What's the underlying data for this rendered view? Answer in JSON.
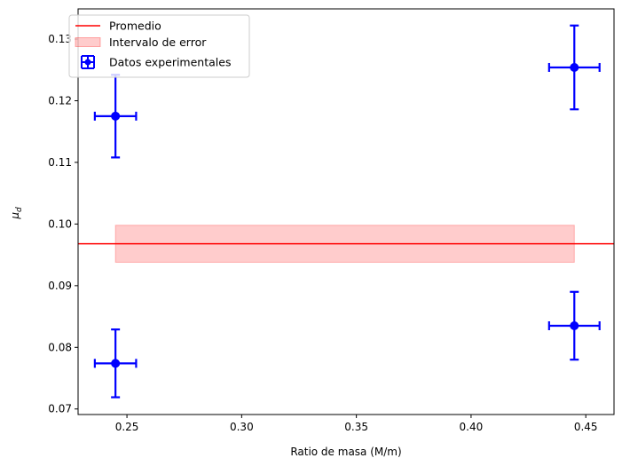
{
  "chart_data": {
    "type": "scatter",
    "xlabel": "Ratio de masa (M/m)",
    "ylabel": "μ",
    "ylabel_sub": "d",
    "xlim": [
      0.2287,
      0.4623
    ],
    "ylim": [
      0.0691,
      0.1349
    ],
    "xticks": [
      0.25,
      0.3,
      0.35,
      0.4,
      0.45
    ],
    "xtick_labels": [
      "0.25",
      "0.30",
      "0.35",
      "0.40",
      "0.45"
    ],
    "yticks": [
      0.07,
      0.08,
      0.09,
      0.1,
      0.11,
      0.12,
      0.13
    ],
    "ytick_labels": [
      "0.07",
      "0.08",
      "0.09",
      "0.10",
      "0.11",
      "0.12",
      "0.13"
    ],
    "grid": false,
    "legend_position": "top-left",
    "mean": {
      "name": "Promedio",
      "y": 0.0968,
      "color": "#ff0000"
    },
    "error_band": {
      "name": "Intervalo de error",
      "x": [
        0.245,
        0.445
      ],
      "y": [
        0.0938,
        0.0998
      ],
      "color": "#ff0000",
      "opacity": 0.2
    },
    "series": [
      {
        "name": "Datos experimentales",
        "color": "#0000ff",
        "points": [
          {
            "x": 0.245,
            "y": 0.1175,
            "xerr": 0.009,
            "yerr": 0.0067
          },
          {
            "x": 0.245,
            "y": 0.0774,
            "xerr": 0.009,
            "yerr": 0.0055
          },
          {
            "x": 0.445,
            "y": 0.1254,
            "xerr": 0.011,
            "yerr": 0.0068
          },
          {
            "x": 0.445,
            "y": 0.0835,
            "xerr": 0.011,
            "yerr": 0.0055
          }
        ]
      }
    ]
  }
}
